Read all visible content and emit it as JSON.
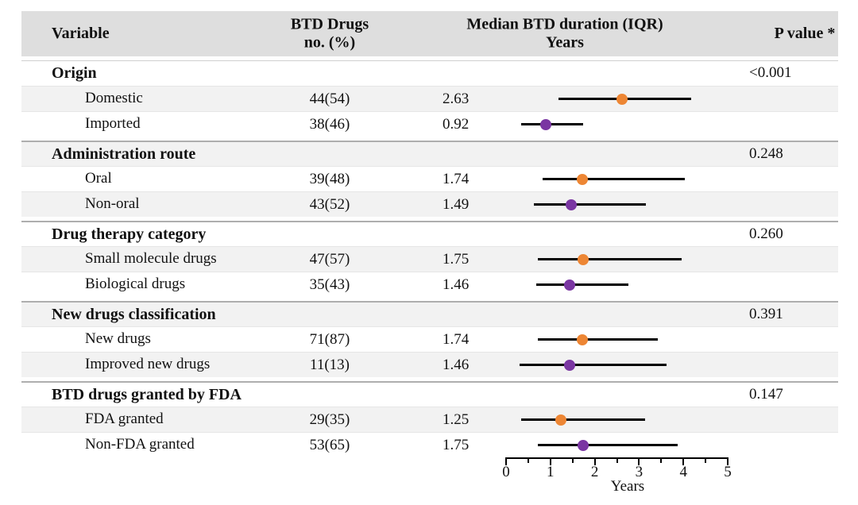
{
  "figure": {
    "header": {
      "variable": "Variable",
      "btd_drugs_line1": "BTD Drugs",
      "btd_drugs_line2": "no. (%)",
      "duration_line1": "Median BTD duration (IQR)",
      "duration_line2": "Years",
      "p_value": "P value *"
    },
    "groups": [
      {
        "label": "Origin",
        "p_value": "<0.001",
        "items": [
          {
            "label": "Domestic",
            "count": "44(54)",
            "median_text": "2.63",
            "median": 2.63,
            "iqr": [
              1.2,
              4.2
            ],
            "color": "orange"
          },
          {
            "label": "Imported",
            "count": "38(46)",
            "median_text": "0.92",
            "median": 0.92,
            "iqr": [
              0.35,
              1.75
            ],
            "color": "purple"
          }
        ]
      },
      {
        "label": "Administration route",
        "p_value": "0.248",
        "items": [
          {
            "label": "Oral",
            "count": "39(48)",
            "median_text": "1.74",
            "median": 1.74,
            "iqr": [
              0.85,
              4.05
            ],
            "color": "orange"
          },
          {
            "label": "Non-oral",
            "count": "43(52)",
            "median_text": "1.49",
            "median": 1.49,
            "iqr": [
              0.65,
              3.17
            ],
            "color": "purple"
          }
        ]
      },
      {
        "label": "Drug therapy category",
        "p_value": "0.260",
        "items": [
          {
            "label": "Small molecule drugs",
            "count": "47(57)",
            "median_text": "1.75",
            "median": 1.75,
            "iqr": [
              0.73,
              3.98
            ],
            "color": "orange"
          },
          {
            "label": "Biological drugs",
            "count": "35(43)",
            "median_text": "1.46",
            "median": 1.46,
            "iqr": [
              0.7,
              2.78
            ],
            "color": "purple"
          }
        ]
      },
      {
        "label": "New drugs classification",
        "p_value": "0.391",
        "items": [
          {
            "label": "New drugs",
            "count": "71(87)",
            "median_text": "1.74",
            "median": 1.74,
            "iqr": [
              0.73,
              3.44
            ],
            "color": "orange"
          },
          {
            "label": "Improved new drugs",
            "count": "11(13)",
            "median_text": "1.46",
            "median": 1.46,
            "iqr": [
              0.32,
              3.64
            ],
            "color": "purple"
          }
        ]
      },
      {
        "label": "BTD drugs granted by FDA",
        "p_value": "0.147",
        "items": [
          {
            "label": "FDA granted",
            "count": "29(35)",
            "median_text": "1.25",
            "median": 1.25,
            "iqr": [
              0.35,
              3.15
            ],
            "color": "orange"
          },
          {
            "label": "Non-FDA granted",
            "count": "53(65)",
            "median_text": "1.75",
            "median": 1.75,
            "iqr": [
              0.74,
              3.89
            ],
            "color": "purple"
          }
        ]
      }
    ],
    "axis": {
      "label": "Years",
      "tick_labels": [
        "0",
        "1",
        "2",
        "3",
        "4",
        "5"
      ],
      "min": 0,
      "max": 5,
      "minor_step": 0.5
    },
    "colors": {
      "orange": "#ED8634",
      "purple": "#7A36A2",
      "line": "#000000"
    }
  },
  "chart_data": {
    "type": "scatter",
    "subtype": "forest-plot",
    "title": "Median BTD duration (IQR), Years",
    "xlabel": "Years",
    "xlim": [
      0,
      5
    ],
    "x_ticks": [
      0,
      1,
      2,
      3,
      4,
      5
    ],
    "x_minor_tick_step": 0.5,
    "grid": false,
    "series": [
      {
        "name": "Domestic",
        "n_pct": "44(54)",
        "median": 2.63,
        "iqr_est": [
          1.2,
          4.2
        ],
        "color": "#ED8634"
      },
      {
        "name": "Imported",
        "n_pct": "38(46)",
        "median": 0.92,
        "iqr_est": [
          0.35,
          1.75
        ],
        "color": "#7A36A2"
      },
      {
        "name": "Oral",
        "n_pct": "39(48)",
        "median": 1.74,
        "iqr_est": [
          0.85,
          4.05
        ],
        "color": "#ED8634"
      },
      {
        "name": "Non-oral",
        "n_pct": "43(52)",
        "median": 1.49,
        "iqr_est": [
          0.65,
          3.17
        ],
        "color": "#7A36A2"
      },
      {
        "name": "Small molecule drugs",
        "n_pct": "47(57)",
        "median": 1.75,
        "iqr_est": [
          0.73,
          3.98
        ],
        "color": "#ED8634"
      },
      {
        "name": "Biological drugs",
        "n_pct": "35(43)",
        "median": 1.46,
        "iqr_est": [
          0.7,
          2.78
        ],
        "color": "#7A36A2"
      },
      {
        "name": "New drugs",
        "n_pct": "71(87)",
        "median": 1.74,
        "iqr_est": [
          0.73,
          3.44
        ],
        "color": "#ED8634"
      },
      {
        "name": "Improved new drugs",
        "n_pct": "11(13)",
        "median": 1.46,
        "iqr_est": [
          0.32,
          3.64
        ],
        "color": "#7A36A2"
      },
      {
        "name": "FDA granted",
        "n_pct": "29(35)",
        "median": 1.25,
        "iqr_est": [
          0.35,
          3.15
        ],
        "color": "#ED8634"
      },
      {
        "name": "Non-FDA granted",
        "n_pct": "53(65)",
        "median": 1.75,
        "iqr_est": [
          0.74,
          3.89
        ],
        "color": "#7A36A2"
      }
    ],
    "p_values": {
      "Origin": "<0.001",
      "Administration route": "0.248",
      "Drug therapy category": "0.260",
      "New drugs classification": "0.391",
      "BTD drugs granted by FDA": "0.147"
    }
  }
}
